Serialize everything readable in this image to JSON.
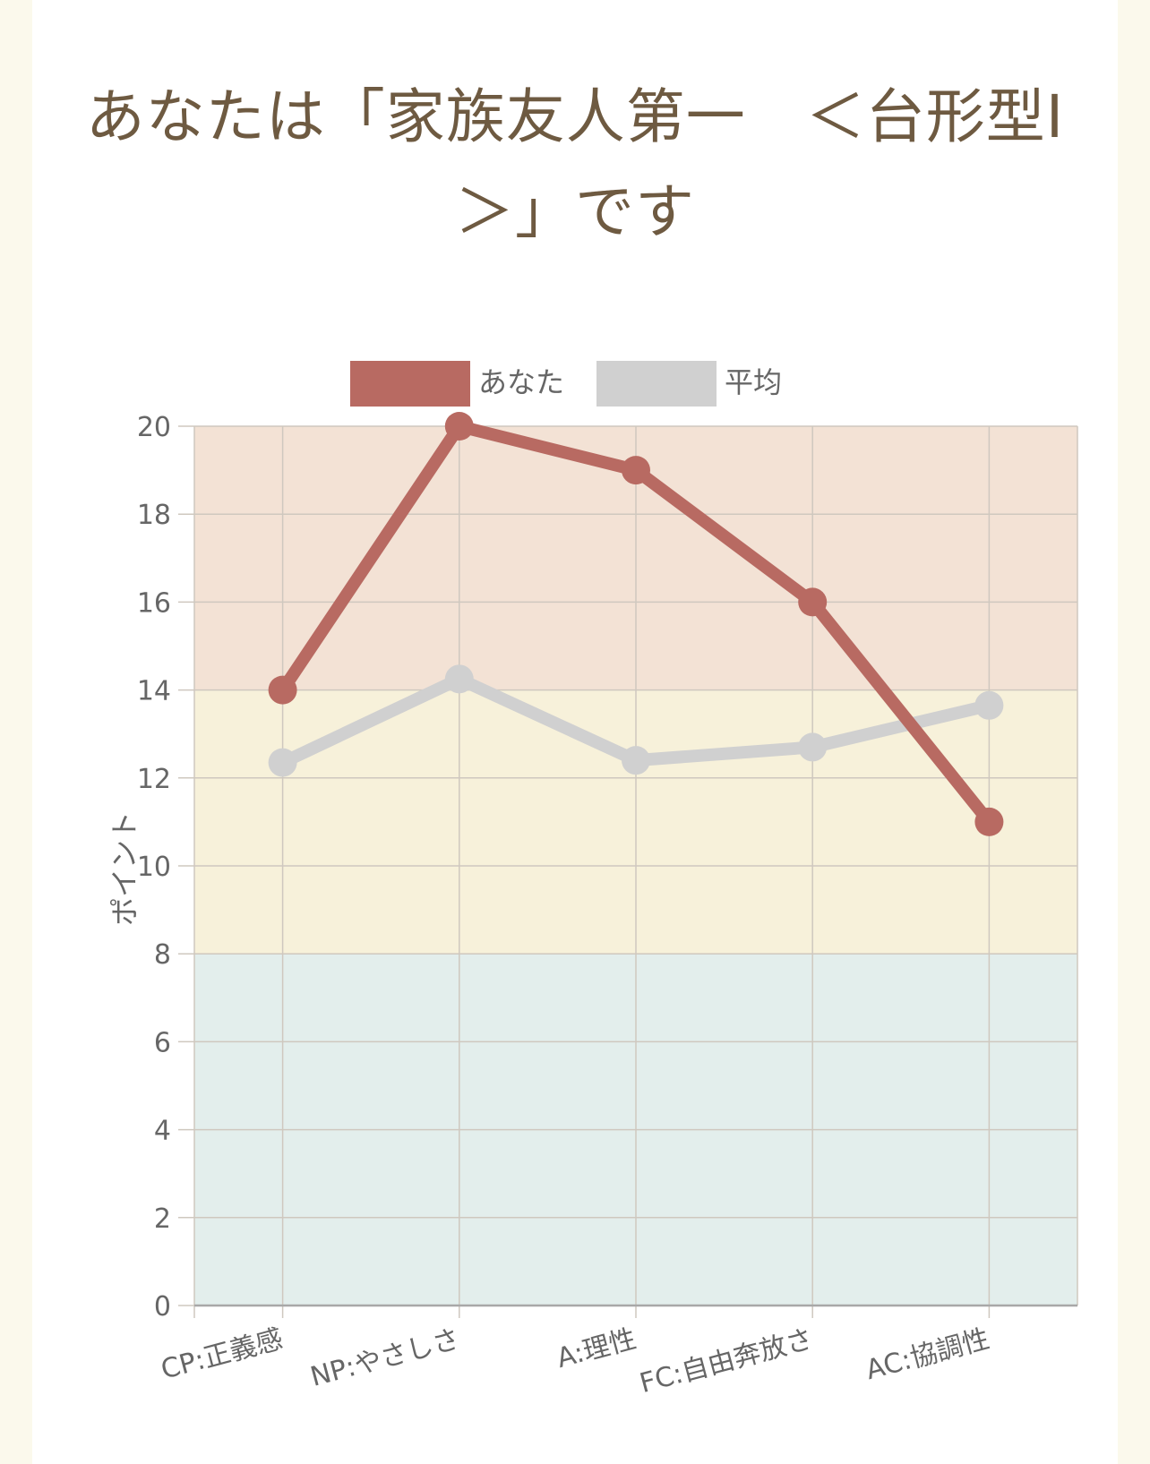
{
  "page": {
    "title": "あなたは「家族友人第一　＜台形型Ⅰ＞」です"
  },
  "colors": {
    "you": "#b86a62",
    "average": "#d0d0d0",
    "band_high": "#f3e2d5",
    "band_mid": "#f7f1da",
    "band_low": "#e3eeec",
    "grid": "#cfc8bf",
    "axis": "#a8a8a8"
  },
  "chart_data": {
    "type": "line",
    "categories": [
      "CP:正義感",
      "NP:やさしさ",
      "A:理性",
      "FC:自由奔放さ",
      "AC:協調性"
    ],
    "series": [
      {
        "name": "あなた",
        "values": [
          14,
          20,
          19,
          16,
          11
        ]
      },
      {
        "name": "平均",
        "values": [
          12.35,
          14.25,
          12.4,
          12.7,
          13.65
        ]
      }
    ],
    "ylabel": "ポイント",
    "ylim": [
      0,
      20
    ],
    "yticks": [
      0,
      2,
      4,
      6,
      8,
      10,
      12,
      14,
      16,
      18,
      20
    ],
    "bands": [
      {
        "from": 14,
        "to": 20,
        "level": "high"
      },
      {
        "from": 8,
        "to": 14,
        "level": "mid"
      },
      {
        "from": 0,
        "to": 8,
        "level": "low"
      }
    ],
    "grid": true,
    "legend_position": "top-center"
  }
}
